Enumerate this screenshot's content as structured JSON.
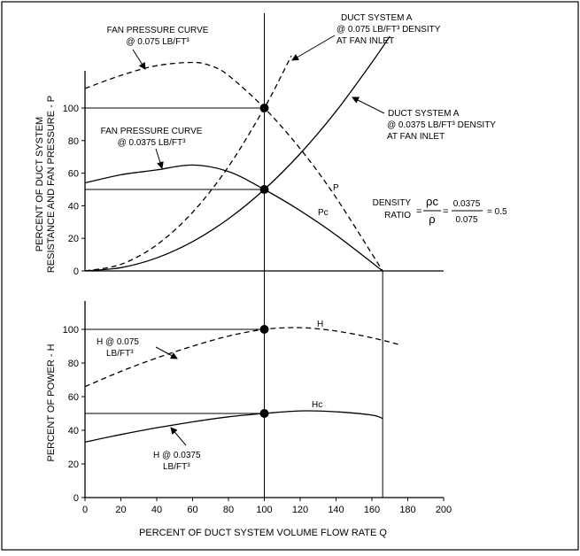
{
  "chart_data": [
    {
      "type": "line",
      "panel": "upper",
      "ylabel_lines": [
        "PERCENT OF DUCT SYSTEM",
        "RESISTANCE AND FAN PRESSURE - P"
      ],
      "yticks": [
        0,
        20,
        40,
        60,
        80,
        100
      ],
      "ylim": [
        0,
        140
      ],
      "xlim": [
        0,
        200
      ],
      "series": [
        {
          "key": "fan_p_0075",
          "style": "dashed",
          "x": [
            0,
            20,
            40,
            60,
            70,
            80,
            100,
            120,
            140,
            166
          ],
          "y": [
            112,
            120,
            126,
            128,
            126,
            120,
            100,
            75,
            45,
            0
          ]
        },
        {
          "key": "duct_a_0075",
          "style": "dashed",
          "x": [
            0,
            20,
            40,
            60,
            80,
            100,
            110,
            115
          ],
          "y": [
            0,
            4,
            16,
            36,
            64,
            100,
            121,
            132
          ]
        },
        {
          "key": "fan_pc_00375",
          "style": "solid",
          "x": [
            0,
            20,
            40,
            60,
            80,
            100,
            120,
            140,
            166
          ],
          "y": [
            54,
            59,
            62,
            65,
            61,
            50,
            37,
            22,
            0
          ]
        },
        {
          "key": "duct_a_00375",
          "style": "solid",
          "x": [
            0,
            20,
            40,
            60,
            80,
            100,
            120,
            140,
            160,
            170
          ],
          "y": [
            0,
            2,
            8,
            18,
            32,
            50,
            72,
            98,
            128,
            144
          ]
        }
      ],
      "guide_lines": {
        "x_vertical": 100,
        "y_horizontal": [
          100,
          50
        ]
      },
      "points": [
        {
          "x": 100,
          "y": 100
        },
        {
          "x": 100,
          "y": 50
        }
      ],
      "annotations": {
        "fan_p_title": "FAN PRESSURE CURVE",
        "fan_p_density": "@ 0.075 LB/FT³",
        "duct_a_title": "DUCT SYSTEM A",
        "duct_a_density_0075": "@ 0.075 LB/FT³ DENSITY",
        "duct_a_inlet": "AT FAN INLET",
        "duct_a2_title": "DUCT SYSTEM A",
        "duct_a2_density": "@ 0.0375 LB/FT³ DENSITY",
        "duct_a2_inlet": "AT FAN INLET",
        "fan_pc_title": "FAN PRESSURE CURVE",
        "fan_pc_density": "@ 0.0375 LB/FT³",
        "p_label": "P",
        "pc_label": "Pc",
        "density_label_1": "DENSITY",
        "density_label_2": "RATIO",
        "density_eq": "=",
        "density_num_sym": "ρc",
        "density_den_sym": "ρ",
        "density_num_val": "0.0375",
        "density_den_val": "0.075",
        "density_result": "= 0.5"
      }
    },
    {
      "type": "line",
      "panel": "lower",
      "ylabel": "PERCENT OF POWER - H",
      "yticks": [
        0,
        20,
        40,
        60,
        80,
        100
      ],
      "ylim": [
        0,
        120
      ],
      "xlim": [
        0,
        200
      ],
      "xticks": [
        0,
        20,
        40,
        60,
        80,
        100,
        120,
        140,
        160,
        180,
        200
      ],
      "xlabel": "PERCENT OF DUCT SYSTEM VOLUME FLOW RATE Q",
      "series": [
        {
          "key": "h_0075",
          "style": "dashed",
          "x": [
            0,
            20,
            40,
            60,
            80,
            100,
            120,
            140,
            160,
            175
          ],
          "y": [
            66,
            75,
            83,
            90,
            96,
            100,
            101,
            99,
            95,
            91
          ]
        },
        {
          "key": "hc_00375",
          "style": "solid",
          "x": [
            0,
            20,
            40,
            60,
            80,
            100,
            120,
            140,
            160,
            166
          ],
          "y": [
            33,
            37.5,
            41.5,
            45,
            48,
            50,
            51.5,
            51,
            49,
            47
          ]
        }
      ],
      "guide_lines": {
        "x_vertical": [
          100,
          166
        ],
        "y_horizontal": [
          100,
          50
        ]
      },
      "points": [
        {
          "x": 100,
          "y": 100
        },
        {
          "x": 100,
          "y": 50
        }
      ],
      "annotations": {
        "h_label": "H",
        "hc_label": "Hc",
        "h0075_line1": "H @ 0.075",
        "h0075_line2": "LB/FT³",
        "h00375_line1": "H @ 0.0375",
        "h00375_line2": "LB/FT³"
      }
    }
  ]
}
